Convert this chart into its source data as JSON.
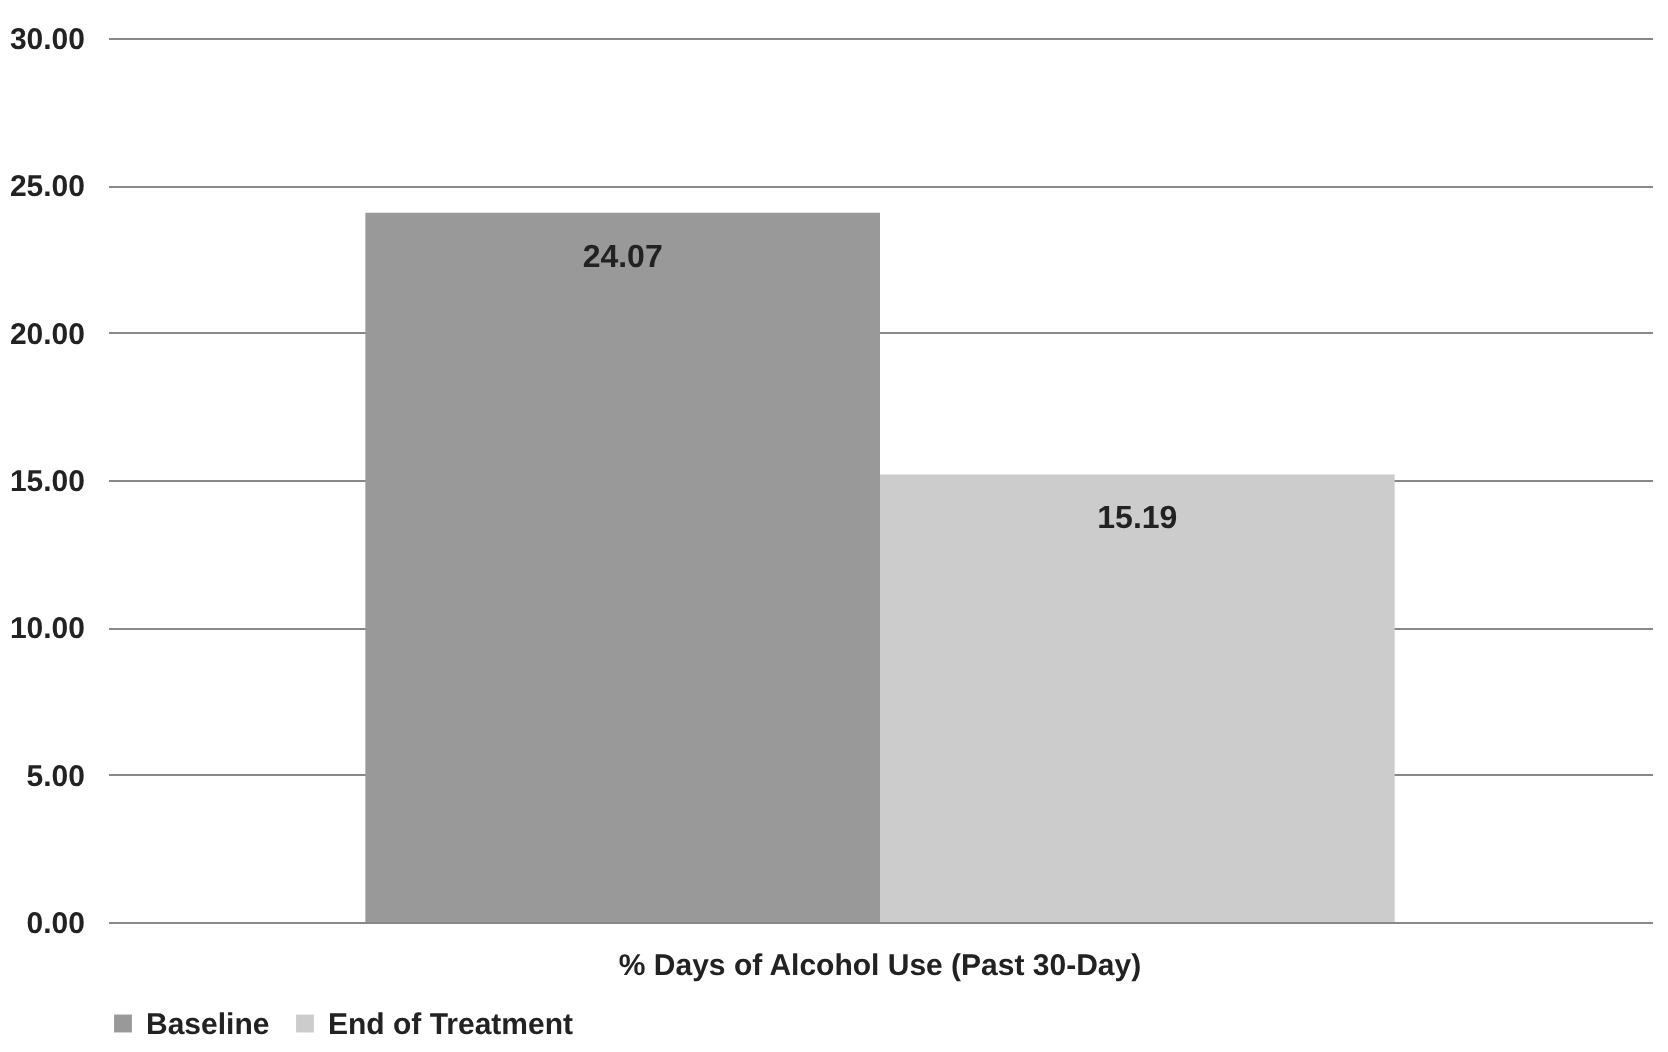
{
  "chart_data": {
    "type": "bar",
    "categories": [
      "% Days of Alcohol Use (Past 30-Day)"
    ],
    "series": [
      {
        "name": "Baseline",
        "color": "#999999",
        "values": [
          24.07
        ]
      },
      {
        "name": "End of Treatment",
        "color": "#cccccc",
        "values": [
          15.19
        ]
      }
    ],
    "ylim": [
      0,
      30
    ],
    "yticks": [
      {
        "value": 0,
        "label": "0.00"
      },
      {
        "value": 5,
        "label": "5.00"
      },
      {
        "value": 10,
        "label": "10.00"
      },
      {
        "value": 15,
        "label": "15.00"
      },
      {
        "value": 20,
        "label": "20.00"
      },
      {
        "value": 25,
        "label": "25.00"
      },
      {
        "value": 30,
        "label": "30.00"
      }
    ],
    "grid": "y",
    "legend": "bottom",
    "data_labels": true
  }
}
